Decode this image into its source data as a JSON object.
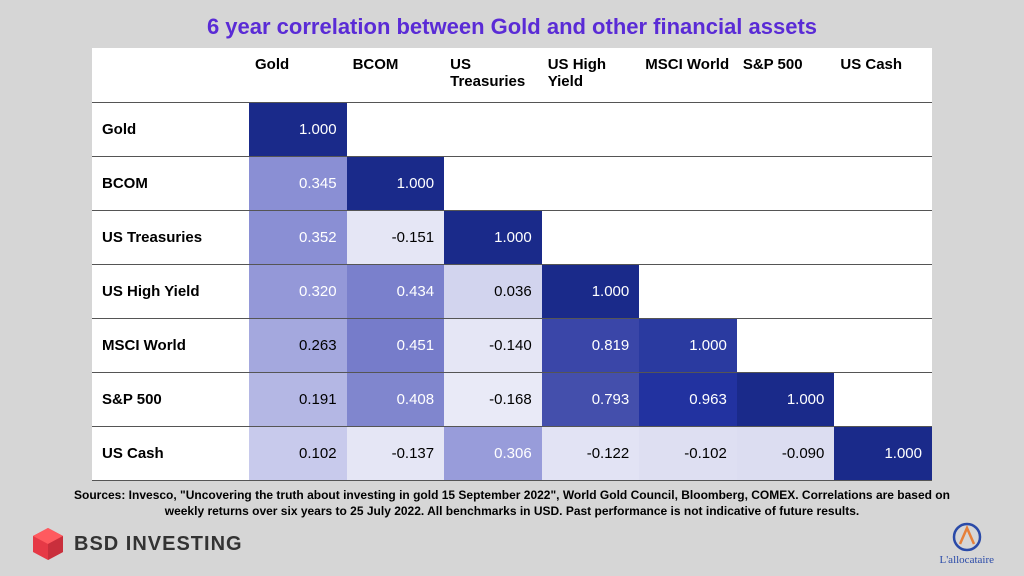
{
  "title": {
    "text": "6 year correlation between Gold and other financial assets",
    "color": "#5a2bd6",
    "fontsize": 22
  },
  "table": {
    "type": "heatmap-table",
    "background": "#ffffff",
    "border_color": "#555555",
    "columns": [
      "Gold",
      "BCOM",
      "US Treasuries",
      "US High Yield",
      "MSCI World",
      "S&P 500",
      "US Cash"
    ],
    "rows": [
      "Gold",
      "BCOM",
      "US Treasuries",
      "US High Yield",
      "MSCI World",
      "S&P 500",
      "US Cash"
    ],
    "cells": [
      [
        {
          "v": "1.000",
          "bg": "#1a2a8a",
          "fg": "#ffffff"
        },
        null,
        null,
        null,
        null,
        null,
        null
      ],
      [
        {
          "v": "0.345",
          "bg": "#8a8fd4",
          "fg": "#ffffff"
        },
        {
          "v": "1.000",
          "bg": "#1a2a8a",
          "fg": "#ffffff"
        },
        null,
        null,
        null,
        null,
        null
      ],
      [
        {
          "v": "0.352",
          "bg": "#8a8fd4",
          "fg": "#ffffff"
        },
        {
          "v": "-0.151",
          "bg": "#e5e6f5",
          "fg": "#000000"
        },
        {
          "v": "1.000",
          "bg": "#1a2a8a",
          "fg": "#ffffff"
        },
        null,
        null,
        null,
        null
      ],
      [
        {
          "v": "0.320",
          "bg": "#9498d8",
          "fg": "#ffffff"
        },
        {
          "v": "0.434",
          "bg": "#7a80cc",
          "fg": "#ffffff"
        },
        {
          "v": "0.036",
          "bg": "#d2d4ee",
          "fg": "#000000"
        },
        {
          "v": "1.000",
          "bg": "#1a2a8a",
          "fg": "#ffffff"
        },
        null,
        null,
        null
      ],
      [
        {
          "v": "0.263",
          "bg": "#a4a8de",
          "fg": "#000000"
        },
        {
          "v": "0.451",
          "bg": "#767cca",
          "fg": "#ffffff"
        },
        {
          "v": "-0.140",
          "bg": "#e5e6f5",
          "fg": "#000000"
        },
        {
          "v": "0.819",
          "bg": "#3a46a8",
          "fg": "#ffffff"
        },
        {
          "v": "1.000",
          "bg": "#2a3aa0",
          "fg": "#ffffff"
        },
        null,
        null
      ],
      [
        {
          "v": "0.191",
          "bg": "#b4b7e4",
          "fg": "#000000"
        },
        {
          "v": "0.408",
          "bg": "#8086ce",
          "fg": "#ffffff"
        },
        {
          "v": "-0.168",
          "bg": "#e9eaf7",
          "fg": "#000000"
        },
        {
          "v": "0.793",
          "bg": "#444fac",
          "fg": "#ffffff"
        },
        {
          "v": "0.963",
          "bg": "#2232a0",
          "fg": "#ffffff"
        },
        {
          "v": "1.000",
          "bg": "#1a2a8a",
          "fg": "#ffffff"
        },
        null
      ],
      [
        {
          "v": "0.102",
          "bg": "#c8caec",
          "fg": "#000000"
        },
        {
          "v": "-0.137",
          "bg": "#e5e6f5",
          "fg": "#000000"
        },
        {
          "v": "0.306",
          "bg": "#989cda",
          "fg": "#ffffff"
        },
        {
          "v": "-0.122",
          "bg": "#e2e3f4",
          "fg": "#000000"
        },
        {
          "v": "-0.102",
          "bg": "#dedff2",
          "fg": "#000000"
        },
        {
          "v": "-0.090",
          "bg": "#dcddf1",
          "fg": "#000000"
        },
        {
          "v": "1.000",
          "bg": "#1a2a8a",
          "fg": "#ffffff"
        }
      ]
    ],
    "header_fontsize": 15,
    "cell_fontsize": 15
  },
  "sources": "Sources: Invesco, \"Uncovering the truth about investing in gold 15 September 2022\", World Gold Council, Bloomberg, COMEX. Correlations are based on weekly returns over six years to 25 July 2022. All benchmarks in USD. Past performance is not indicative of future results.",
  "footer": {
    "left_logo_text": "BSD INVESTING",
    "left_logo_colors": {
      "hex1": "#e63946",
      "hex2": "#6a4cff"
    },
    "right_logo_text": "L'allocataire",
    "right_logo_color": "#2a4aa8"
  }
}
